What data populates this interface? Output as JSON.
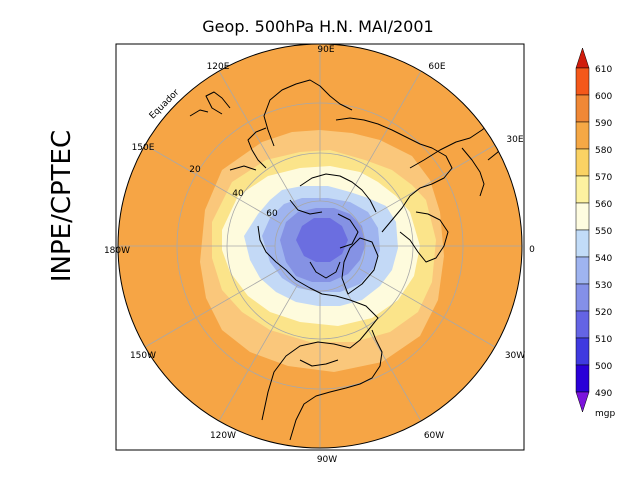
{
  "title": "Geop. 500hPa H.N. MAI/2001",
  "side_label": "INPE/CPTEC",
  "equator_label": "Equador",
  "longitude_labels": [
    "90E",
    "60E",
    "30E",
    "0",
    "30W",
    "60W",
    "90W",
    "120W",
    "150W",
    "180W",
    "150E",
    "120E"
  ],
  "latitude_labels": [
    "20",
    "40",
    "60"
  ],
  "colorbar": {
    "unit": "mgp",
    "levels": [
      "610",
      "600",
      "590",
      "580",
      "570",
      "560",
      "550",
      "540",
      "530",
      "520",
      "510",
      "500",
      "490"
    ],
    "colors": [
      "#d01c0c",
      "#f4581a",
      "#f08836",
      "#f5a845",
      "#fad264",
      "#fdf2a0",
      "#fefce0",
      "#c2dcf8",
      "#9fb4f0",
      "#8490e8",
      "#6464e4",
      "#3f3ae0",
      "#2a00d8",
      "#7c14dc"
    ]
  },
  "fill_colors": {
    "orange": "#f6a545",
    "light_orange": "#fac77b",
    "yellow": "#fbe48a",
    "cream": "#fefbdd",
    "light_blue": "#c3d9f6",
    "mid_blue": "#9fb4ef",
    "blue": "#8592e4",
    "deep_blue": "#6b6ee0"
  }
}
